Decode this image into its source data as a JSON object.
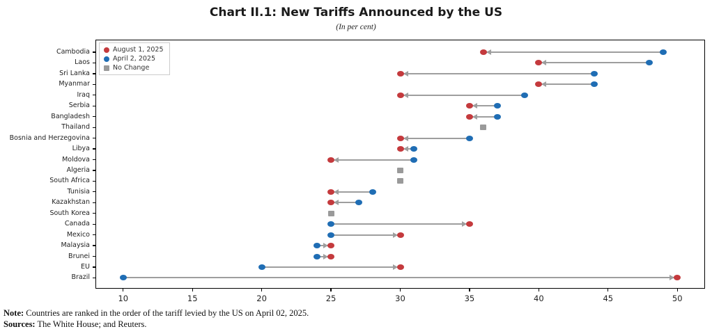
{
  "title": "Chart II.1: New Tariffs Announced by the US",
  "subtitle": "(In per cent)",
  "note_label": "Note:",
  "note_text": " Countries are ranked in the order of the tariff levied by the US on April 02, 2025.",
  "sources_label": "Sources:",
  "sources_text": " The White House; and Reuters.",
  "colors": {
    "august": "#c43a3d",
    "april": "#1f6db4",
    "no_change": "#9a9a9a",
    "connector": "#9e9e9e"
  },
  "legend": [
    {
      "label": "August 1, 2025",
      "marker": "circle",
      "color": "#c43a3d"
    },
    {
      "label": "April 2, 2025",
      "marker": "circle",
      "color": "#1f6db4"
    },
    {
      "label": "No Change",
      "marker": "square",
      "color": "#9a9a9a"
    }
  ],
  "chart_data": {
    "type": "dumbbell",
    "title": "Chart II.1: New Tariffs Announced by the US",
    "subtitle": "(In per cent)",
    "xlabel": "",
    "ylabel": "",
    "xlim": [
      8,
      52
    ],
    "xticks": [
      10,
      15,
      20,
      25,
      30,
      35,
      40,
      45,
      50
    ],
    "grid": false,
    "legend_position": "upper-left",
    "categories": [
      "Cambodia",
      "Laos",
      "Sri Lanka",
      "Myanmar",
      "Iraq",
      "Serbia",
      "Bangladesh",
      "Thailand",
      "Bosnia and Herzegovina",
      "Libya",
      "Moldova",
      "Algeria",
      "South Africa",
      "Tunisia",
      "Kazakhstan",
      "South Korea",
      "Canada",
      "Mexico",
      "Malaysia",
      "Brunei",
      "EU",
      "Brazil"
    ],
    "series": [
      {
        "name": "August 1, 2025",
        "values": [
          36,
          40,
          30,
          40,
          30,
          35,
          35,
          36,
          30,
          30,
          25,
          30,
          30,
          25,
          25,
          25,
          35,
          30,
          25,
          25,
          30,
          50
        ]
      },
      {
        "name": "April 2, 2025",
        "values": [
          49,
          48,
          44,
          44,
          39,
          37,
          37,
          36,
          35,
          31,
          31,
          30,
          30,
          28,
          27,
          25,
          25,
          25,
          24,
          24,
          20,
          10
        ]
      }
    ],
    "no_change_countries": [
      "Thailand",
      "Algeria",
      "South Africa",
      "South Korea"
    ],
    "rows": [
      {
        "country": "Cambodia",
        "aug1_2025": 36,
        "apr2_2025": 49,
        "no_change": false
      },
      {
        "country": "Laos",
        "aug1_2025": 40,
        "apr2_2025": 48,
        "no_change": false
      },
      {
        "country": "Sri Lanka",
        "aug1_2025": 30,
        "apr2_2025": 44,
        "no_change": false
      },
      {
        "country": "Myanmar",
        "aug1_2025": 40,
        "apr2_2025": 44,
        "no_change": false
      },
      {
        "country": "Iraq",
        "aug1_2025": 30,
        "apr2_2025": 39,
        "no_change": false
      },
      {
        "country": "Serbia",
        "aug1_2025": 35,
        "apr2_2025": 37,
        "no_change": false
      },
      {
        "country": "Bangladesh",
        "aug1_2025": 35,
        "apr2_2025": 37,
        "no_change": false
      },
      {
        "country": "Thailand",
        "aug1_2025": 36,
        "apr2_2025": 36,
        "no_change": true
      },
      {
        "country": "Bosnia and Herzegovina",
        "aug1_2025": 30,
        "apr2_2025": 35,
        "no_change": false
      },
      {
        "country": "Libya",
        "aug1_2025": 30,
        "apr2_2025": 31,
        "no_change": false
      },
      {
        "country": "Moldova",
        "aug1_2025": 25,
        "apr2_2025": 31,
        "no_change": false
      },
      {
        "country": "Algeria",
        "aug1_2025": 30,
        "apr2_2025": 30,
        "no_change": true
      },
      {
        "country": "South Africa",
        "aug1_2025": 30,
        "apr2_2025": 30,
        "no_change": true
      },
      {
        "country": "Tunisia",
        "aug1_2025": 25,
        "apr2_2025": 28,
        "no_change": false
      },
      {
        "country": "Kazakhstan",
        "aug1_2025": 25,
        "apr2_2025": 27,
        "no_change": false
      },
      {
        "country": "South Korea",
        "aug1_2025": 25,
        "apr2_2025": 25,
        "no_change": true
      },
      {
        "country": "Canada",
        "aug1_2025": 35,
        "apr2_2025": 25,
        "no_change": false
      },
      {
        "country": "Mexico",
        "aug1_2025": 30,
        "apr2_2025": 25,
        "no_change": false
      },
      {
        "country": "Malaysia",
        "aug1_2025": 25,
        "apr2_2025": 24,
        "no_change": false
      },
      {
        "country": "Brunei",
        "aug1_2025": 25,
        "apr2_2025": 24,
        "no_change": false
      },
      {
        "country": "EU",
        "aug1_2025": 30,
        "apr2_2025": 20,
        "no_change": false
      },
      {
        "country": "Brazil",
        "aug1_2025": 50,
        "apr2_2025": 10,
        "no_change": false
      }
    ]
  }
}
